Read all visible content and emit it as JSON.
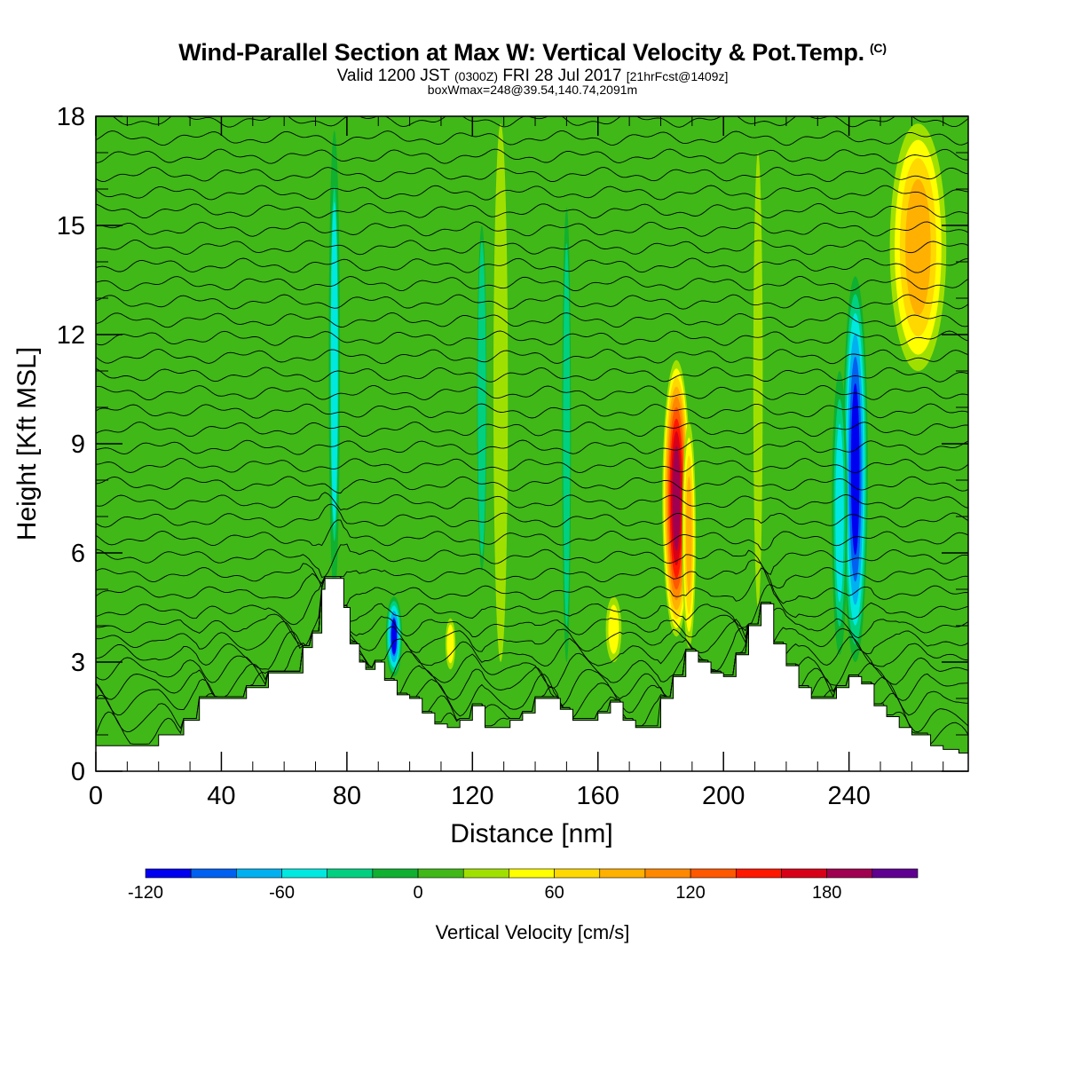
{
  "header": {
    "title": "Wind-Parallel Section at Max W: Vertical Velocity & Pot.Temp.",
    "copyright": "(C)",
    "valid_prefix": "Valid 1200 JST",
    "utc": "(0300Z)",
    "valid_date": "FRI 28 Jul 2017",
    "forecast": "[21hrFcst@1409z]",
    "boxmax": "boxWmax=248@39.54,140.74,2091m"
  },
  "chart_data": {
    "type": "heatmap",
    "title": "Wind-Parallel Section at Max W: Vertical Velocity & Pot.Temp.",
    "xlabel": "Distance [nm]",
    "ylabel": "Height [Kft MSL]",
    "xlim": [
      0,
      278
    ],
    "ylim": [
      0,
      18
    ],
    "x_ticks": [
      0,
      40,
      80,
      120,
      160,
      200,
      240
    ],
    "y_ticks": [
      0,
      3,
      6,
      9,
      12,
      15,
      18
    ],
    "field": "Vertical Velocity",
    "background_value": 0,
    "contour_field": "Potential temperature",
    "terrain": {
      "x": [
        0,
        18,
        20,
        28,
        33,
        44,
        48,
        55,
        64,
        66,
        69,
        72,
        73,
        76,
        79,
        81,
        84,
        86,
        89,
        92,
        96,
        100,
        104,
        108,
        112,
        116,
        120,
        124,
        128,
        132,
        136,
        140,
        144,
        148,
        152,
        156,
        160,
        164,
        168,
        172,
        176,
        180,
        184,
        188,
        192,
        196,
        200,
        204,
        208,
        212,
        216,
        220,
        224,
        228,
        232,
        236,
        240,
        244,
        248,
        252,
        256,
        260,
        266,
        270,
        275,
        278
      ],
      "height": [
        0.7,
        0.7,
        1.0,
        1.4,
        2.0,
        2.0,
        2.3,
        2.7,
        2.7,
        3.4,
        3.8,
        5.0,
        5.3,
        5.3,
        4.5,
        3.5,
        3.0,
        2.8,
        3.0,
        2.5,
        2.1,
        2.0,
        1.6,
        1.3,
        1.2,
        1.4,
        1.8,
        1.2,
        1.2,
        1.4,
        1.6,
        2.0,
        2.0,
        1.7,
        1.4,
        1.4,
        1.6,
        1.9,
        1.4,
        1.2,
        1.2,
        2.0,
        2.6,
        3.3,
        3.0,
        2.7,
        2.6,
        3.2,
        4.0,
        4.6,
        3.5,
        2.9,
        2.3,
        2.0,
        2.0,
        2.3,
        2.6,
        2.4,
        1.8,
        1.5,
        1.2,
        1.0,
        0.7,
        0.6,
        0.5,
        0.5
      ]
    },
    "features": [
      {
        "x": 185,
        "y_bottom": 3.7,
        "y_top": 11.3,
        "half_width": 4.5,
        "peak": 190
      },
      {
        "x": 189,
        "y_bottom": 3.4,
        "y_top": 9.6,
        "half_width": 2.2,
        "peak": 80
      },
      {
        "x": 242,
        "y_bottom": 3.0,
        "y_top": 13.6,
        "half_width": 4.0,
        "peak": -125
      },
      {
        "x": 237,
        "y_bottom": 3.2,
        "y_top": 11.0,
        "half_width": 2.5,
        "peak": -55
      },
      {
        "x": 262,
        "y_bottom": 11.0,
        "y_top": 17.8,
        "half_width": 9.0,
        "peak": 85
      },
      {
        "x": 95,
        "y_bottom": 2.6,
        "y_top": 4.8,
        "half_width": 2.6,
        "peak": -105
      },
      {
        "x": 76,
        "y_bottom": 4.8,
        "y_top": 17.6,
        "half_width": 1.8,
        "peak": -45
      },
      {
        "x": 129,
        "y_bottom": 3.0,
        "y_top": 17.8,
        "half_width": 2.3,
        "peak": 38
      },
      {
        "x": 113,
        "y_bottom": 2.8,
        "y_top": 4.2,
        "half_width": 1.6,
        "peak": 45
      },
      {
        "x": 165,
        "y_bottom": 3.0,
        "y_top": 4.8,
        "half_width": 2.5,
        "peak": 42
      },
      {
        "x": 150,
        "y_bottom": 3.0,
        "y_top": 15.5,
        "half_width": 1.4,
        "peak": -30
      },
      {
        "x": 211,
        "y_bottom": 4.5,
        "y_top": 17.0,
        "half_width": 1.5,
        "peak": 22
      },
      {
        "x": 123,
        "y_bottom": 5.5,
        "y_top": 15.0,
        "half_width": 1.5,
        "peak": -25
      }
    ],
    "theta_contours": {
      "base_heights": [
        1.0,
        1.5,
        2.0,
        2.4,
        2.8,
        3.2,
        3.6,
        4.0,
        4.4,
        4.9,
        5.4,
        5.9,
        6.4,
        6.9,
        7.4,
        7.9,
        8.4,
        8.9,
        9.4,
        9.9,
        10.4,
        10.9,
        11.4,
        11.9,
        12.4,
        12.9,
        13.4,
        13.9,
        14.4,
        14.9,
        15.4,
        15.9,
        16.4,
        16.9,
        17.4,
        17.9
      ]
    },
    "colorbar": {
      "title": "Vertical Velocity [cm/s]",
      "min": -120,
      "max": 220,
      "step": 20,
      "tick_values": [
        -120,
        -60,
        0,
        60,
        120,
        180
      ],
      "tick_labels": [
        "-120",
        "-60",
        "0",
        "60",
        "120",
        "180"
      ],
      "colors": [
        "#0000f0",
        "#0060f0",
        "#00b0f0",
        "#00e8e0",
        "#00d080",
        "#10b030",
        "#40b818",
        "#a0e000",
        "#ffff00",
        "#ffd800",
        "#ffb000",
        "#ff8800",
        "#ff5800",
        "#ff1800",
        "#d80018",
        "#a00050",
        "#600090"
      ]
    }
  }
}
